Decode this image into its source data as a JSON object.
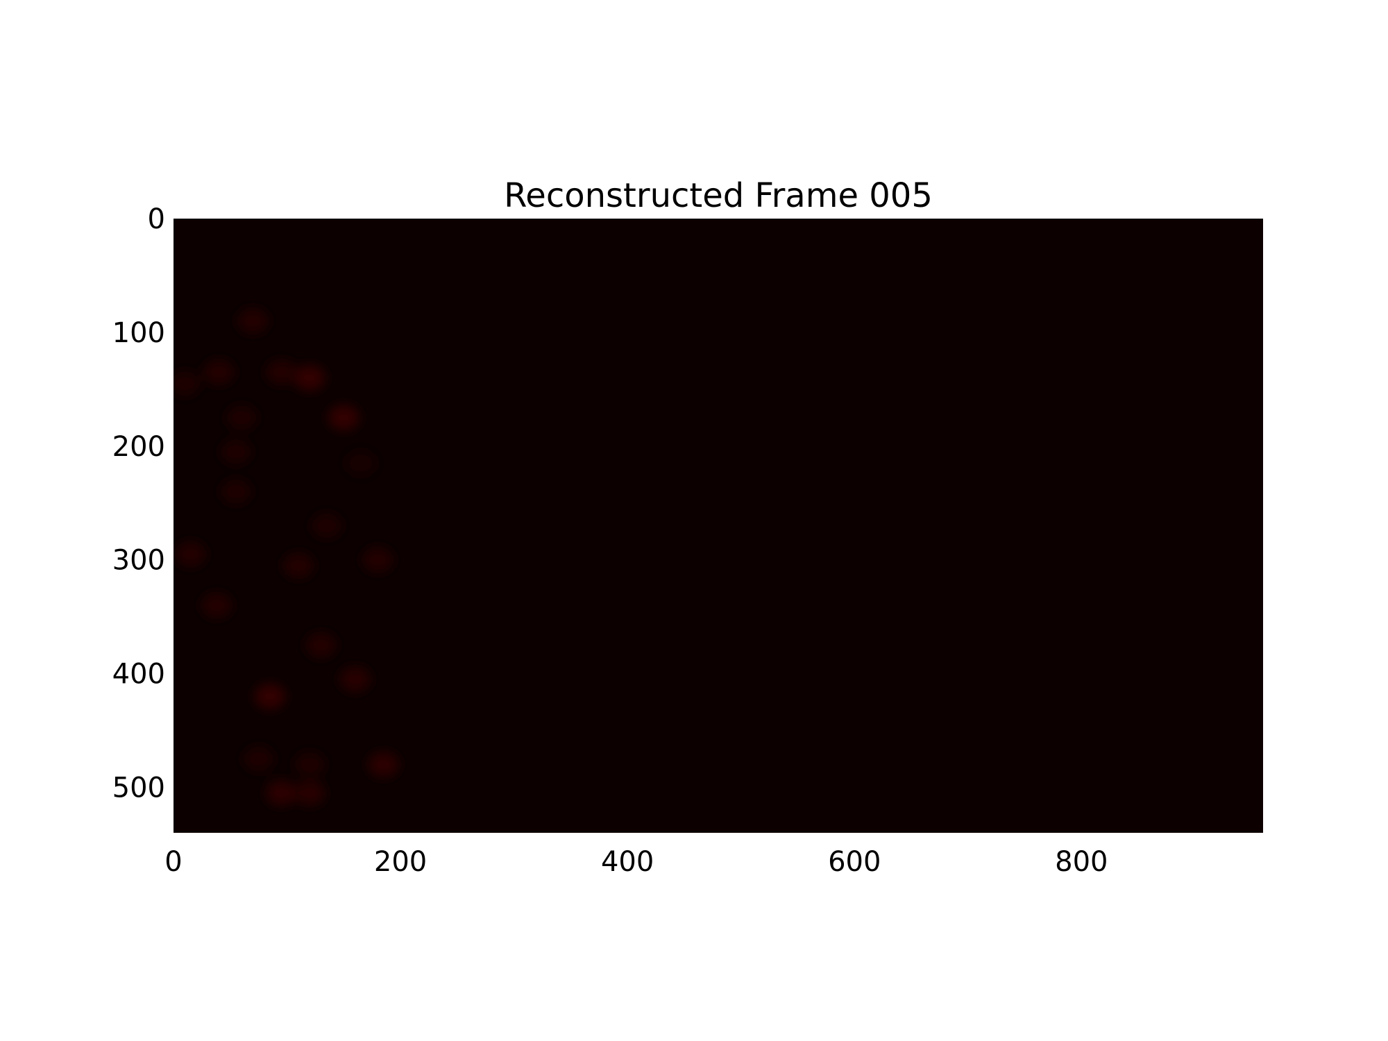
{
  "chart_data": {
    "type": "heatmap",
    "title": "Reconstructed Frame 005",
    "xlabel": "",
    "ylabel": "",
    "image_width": 960,
    "image_height": 540,
    "xlim": [
      0,
      960
    ],
    "ylim": [
      540,
      0
    ],
    "x_ticks": [
      0,
      200,
      400,
      600,
      800
    ],
    "y_ticks": [
      0,
      100,
      200,
      300,
      400,
      500
    ],
    "background_color": "#0c0000",
    "colormap": "hot",
    "grid": false,
    "blobs": [
      {
        "x": 70,
        "y": 90,
        "value": 0.25
      },
      {
        "x": 120,
        "y": 140,
        "value": 0.45
      },
      {
        "x": 95,
        "y": 135,
        "value": 0.3
      },
      {
        "x": 40,
        "y": 135,
        "value": 0.25
      },
      {
        "x": 10,
        "y": 145,
        "value": 0.2
      },
      {
        "x": 150,
        "y": 175,
        "value": 0.45
      },
      {
        "x": 60,
        "y": 175,
        "value": 0.2
      },
      {
        "x": 55,
        "y": 205,
        "value": 0.2
      },
      {
        "x": 165,
        "y": 215,
        "value": 0.15
      },
      {
        "x": 55,
        "y": 240,
        "value": 0.2
      },
      {
        "x": 135,
        "y": 270,
        "value": 0.2
      },
      {
        "x": 15,
        "y": 295,
        "value": 0.3
      },
      {
        "x": 110,
        "y": 305,
        "value": 0.25
      },
      {
        "x": 180,
        "y": 300,
        "value": 0.25
      },
      {
        "x": 38,
        "y": 340,
        "value": 0.3
      },
      {
        "x": 130,
        "y": 375,
        "value": 0.25
      },
      {
        "x": 160,
        "y": 405,
        "value": 0.35
      },
      {
        "x": 85,
        "y": 420,
        "value": 0.45
      },
      {
        "x": 185,
        "y": 480,
        "value": 0.4
      },
      {
        "x": 75,
        "y": 475,
        "value": 0.2
      },
      {
        "x": 120,
        "y": 480,
        "value": 0.2
      },
      {
        "x": 95,
        "y": 505,
        "value": 0.4
      },
      {
        "x": 120,
        "y": 505,
        "value": 0.35
      }
    ]
  }
}
